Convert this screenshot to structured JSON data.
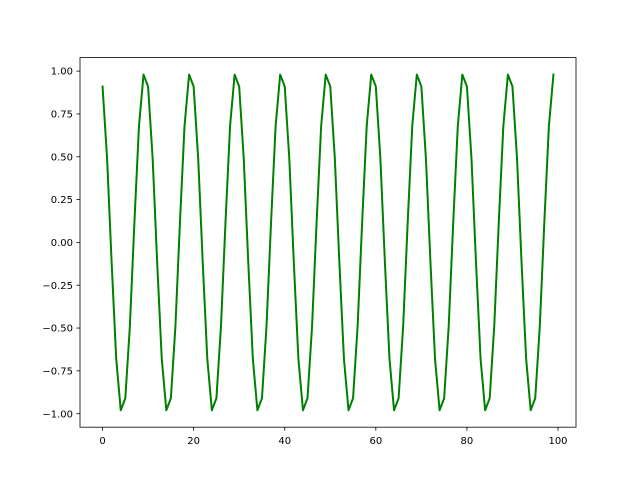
{
  "chart_data": {
    "type": "line",
    "title": "",
    "xlabel": "",
    "ylabel": "",
    "xlim": [
      -4.95,
      103.95
    ],
    "ylim": [
      -1.079,
      1.079
    ],
    "xticks": [
      0,
      20,
      40,
      60,
      80,
      100
    ],
    "xtick_labels": [
      "0",
      "20",
      "40",
      "60",
      "80",
      "100"
    ],
    "yticks": [
      -1.0,
      -0.75,
      -0.5,
      -0.25,
      0.0,
      0.25,
      0.5,
      0.75,
      1.0
    ],
    "ytick_labels": [
      "−1.00",
      "−0.75",
      "−0.50",
      "−0.25",
      "0.00",
      "0.25",
      "0.50",
      "0.75",
      "1.00"
    ],
    "grid": false,
    "series": [
      {
        "color": "#008000",
        "x_start": 0,
        "x_step": 1,
        "values": [
          0.91,
          0.49,
          -0.12,
          -0.68,
          -0.98,
          -0.91,
          -0.49,
          0.12,
          0.68,
          0.98,
          0.91,
          0.49,
          -0.12,
          -0.68,
          -0.98,
          -0.91,
          -0.49,
          0.12,
          0.68,
          0.98,
          0.91,
          0.49,
          -0.12,
          -0.68,
          -0.98,
          -0.91,
          -0.49,
          0.12,
          0.68,
          0.98,
          0.91,
          0.49,
          -0.12,
          -0.68,
          -0.98,
          -0.91,
          -0.49,
          0.12,
          0.68,
          0.98,
          0.91,
          0.49,
          -0.12,
          -0.68,
          -0.98,
          -0.91,
          -0.49,
          0.12,
          0.68,
          0.98,
          0.91,
          0.49,
          -0.12,
          -0.68,
          -0.98,
          -0.91,
          -0.49,
          0.12,
          0.68,
          0.98,
          0.91,
          0.49,
          -0.12,
          -0.68,
          -0.98,
          -0.91,
          -0.49,
          0.12,
          0.68,
          0.98,
          0.91,
          0.49,
          -0.12,
          -0.68,
          -0.98,
          -0.91,
          -0.49,
          0.12,
          0.68,
          0.98,
          0.91,
          0.49,
          -0.12,
          -0.68,
          -0.98,
          -0.91,
          -0.49,
          0.12,
          0.68,
          0.98,
          0.91,
          0.49,
          -0.12,
          -0.68,
          -0.98,
          -0.91,
          -0.49,
          0.12,
          0.68,
          0.98
        ]
      }
    ]
  }
}
